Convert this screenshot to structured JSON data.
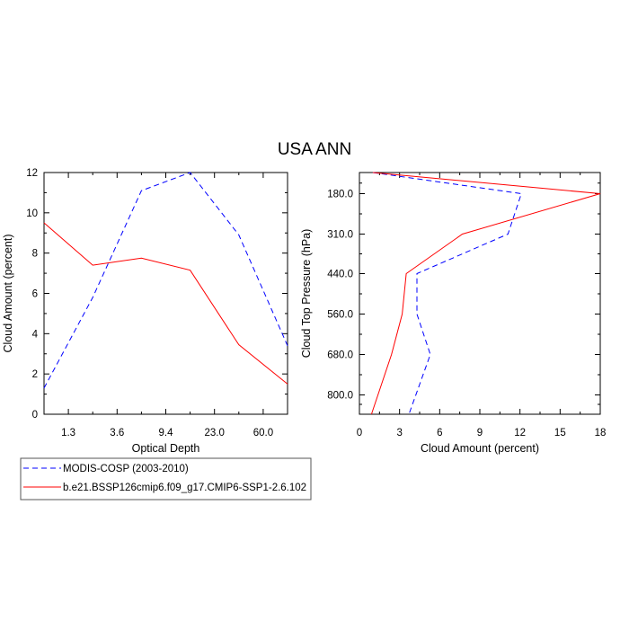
{
  "figure": {
    "title": "USA ANN"
  },
  "legend": {
    "placement": "bottom-left",
    "entries": [
      {
        "label": "MODIS-COSP (2003-2010)",
        "color": "#0000ff",
        "dash": "dashed"
      },
      {
        "label": "b.e21.BSSP126cmip6.f09_g17.CMIP6-SSP1-2.6.102",
        "color": "#ff0000",
        "dash": "solid"
      }
    ]
  },
  "chart_data": [
    {
      "type": "line",
      "title": "",
      "xlabel": "Optical Depth",
      "ylabel": "Cloud Amount (percent)",
      "x_tick_labels": [
        "1.3",
        "3.6",
        "9.4",
        "23.0",
        "60.0"
      ],
      "x_tick_positions": [
        1,
        2,
        3,
        4,
        5
      ],
      "xlim": [
        0.5,
        5.5
      ],
      "ylim": [
        0,
        12
      ],
      "y_ticks": [
        0,
        2,
        4,
        6,
        8,
        10,
        12
      ],
      "y_tick_labels": [
        "0",
        "2",
        "4",
        "6",
        "8",
        "10",
        "12"
      ],
      "series": [
        {
          "name": "MODIS-COSP (2003-2010)",
          "color": "#0000ff",
          "dash": "dashed",
          "x": [
            0.5,
            1.5,
            2.5,
            3.5,
            4.5,
            5.5
          ],
          "y": [
            1.3,
            5.8,
            11.1,
            12.0,
            8.9,
            3.4
          ]
        },
        {
          "name": "b.e21.BSSP126cmip6.f09_g17.CMIP6-SSP1-2.6.102",
          "color": "#ff0000",
          "dash": "solid",
          "x": [
            0.5,
            1.5,
            2.5,
            3.5,
            4.5,
            5.5
          ],
          "y": [
            9.5,
            7.4,
            7.75,
            7.15,
            3.45,
            1.5
          ]
        }
      ]
    },
    {
      "type": "line",
      "title": "",
      "xlabel": "Cloud Amount (percent)",
      "ylabel": "Cloud Top Pressure (hPa)",
      "x_ticks": [
        0,
        3,
        6,
        9,
        12,
        15,
        18
      ],
      "x_tick_labels": [
        "0",
        "3",
        "6",
        "9",
        "12",
        "15",
        "18"
      ],
      "xlim": [
        0,
        18
      ],
      "y_tick_labels": [
        "180.0",
        "310.0",
        "440.0",
        "560.0",
        "680.0",
        "800.0"
      ],
      "y_tick_values": [
        180,
        310,
        440,
        560,
        680,
        800
      ],
      "ylim": [
        920,
        50
      ],
      "y_reversed": true,
      "series": [
        {
          "name": "MODIS-COSP (2003-2010)",
          "color": "#0000ff",
          "dash": "dashed",
          "x": [
            1.0,
            12.1,
            11.1,
            4.3,
            4.3,
            5.3,
            3.7
          ],
          "y": [
            50,
            180,
            310,
            440,
            560,
            680,
            920
          ]
        },
        {
          "name": "b.e21.BSSP126cmip6.f09_g17.CMIP6-SSP1-2.6.102",
          "color": "#ff0000",
          "dash": "solid",
          "x": [
            1.0,
            18.0,
            7.7,
            3.5,
            3.2,
            2.4,
            0.9
          ],
          "y": [
            50,
            180,
            310,
            440,
            560,
            680,
            920
          ]
        }
      ]
    }
  ]
}
